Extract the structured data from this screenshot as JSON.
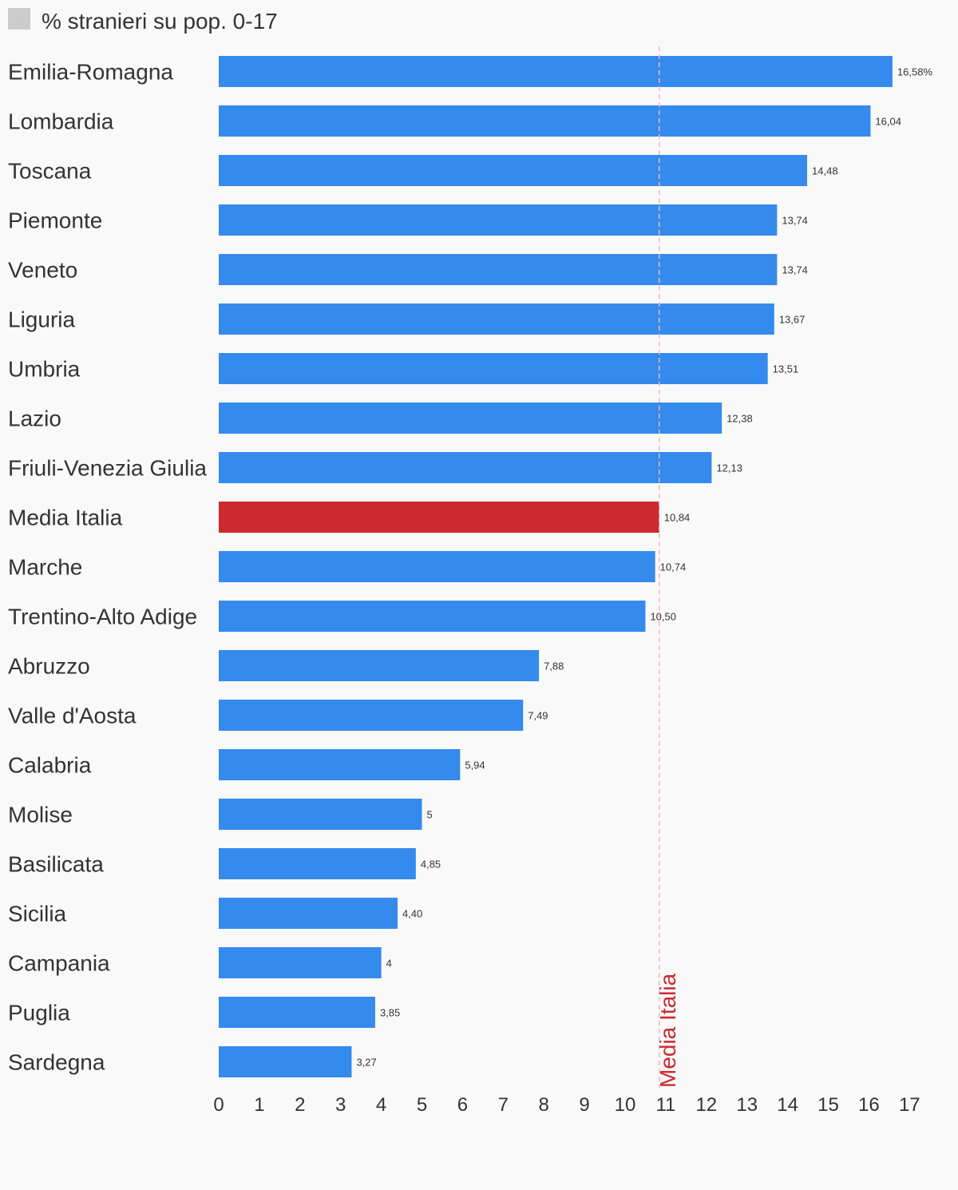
{
  "chart_data": {
    "type": "bar",
    "orientation": "horizontal",
    "legend": {
      "label": "% stranieri su pop. 0-17",
      "swatch_color": "#cccccc",
      "placement": "top-left"
    },
    "categories": [
      "Emilia-Romagna",
      "Lombardia",
      "Toscana",
      "Piemonte",
      "Veneto",
      "Liguria",
      "Umbria",
      "Lazio",
      "Friuli-Venezia Giulia",
      "Media Italia",
      "Marche",
      "Trentino-Alto Adige",
      "Abruzzo",
      "Valle d'Aosta",
      "Calabria",
      "Molise",
      "Basilicata",
      "Sicilia",
      "Campania",
      "Puglia",
      "Sardegna"
    ],
    "values": [
      16.58,
      16.04,
      14.48,
      13.74,
      13.74,
      13.67,
      13.51,
      12.38,
      12.13,
      10.84,
      10.74,
      10.5,
      7.88,
      7.49,
      5.94,
      5,
      4.85,
      4.4,
      4,
      3.85,
      3.27
    ],
    "value_labels": [
      "16,58%",
      "16,04",
      "14,48",
      "13,74",
      "13,74",
      "13,67",
      "13,51",
      "12,38",
      "12,13",
      "10,84",
      "10,74",
      "10,50",
      "7,88",
      "7,49",
      "5,94",
      "5",
      "4,85",
      "4,40",
      "4",
      "3,85",
      "3,27"
    ],
    "highlight_category": "Media Italia",
    "reference_line": {
      "value": 10.84,
      "label": "Media Italia",
      "color": "#cc2a30",
      "style": "dashed"
    },
    "xlim": [
      0,
      17
    ],
    "x_ticks": [
      0,
      1,
      2,
      3,
      4,
      5,
      6,
      7,
      8,
      9,
      10,
      11,
      12,
      13,
      14,
      15,
      16,
      17
    ],
    "grid": false,
    "colors": {
      "bar": "#348aed",
      "highlight": "#cc2a30",
      "reference_line": "#f4b6bb"
    }
  }
}
